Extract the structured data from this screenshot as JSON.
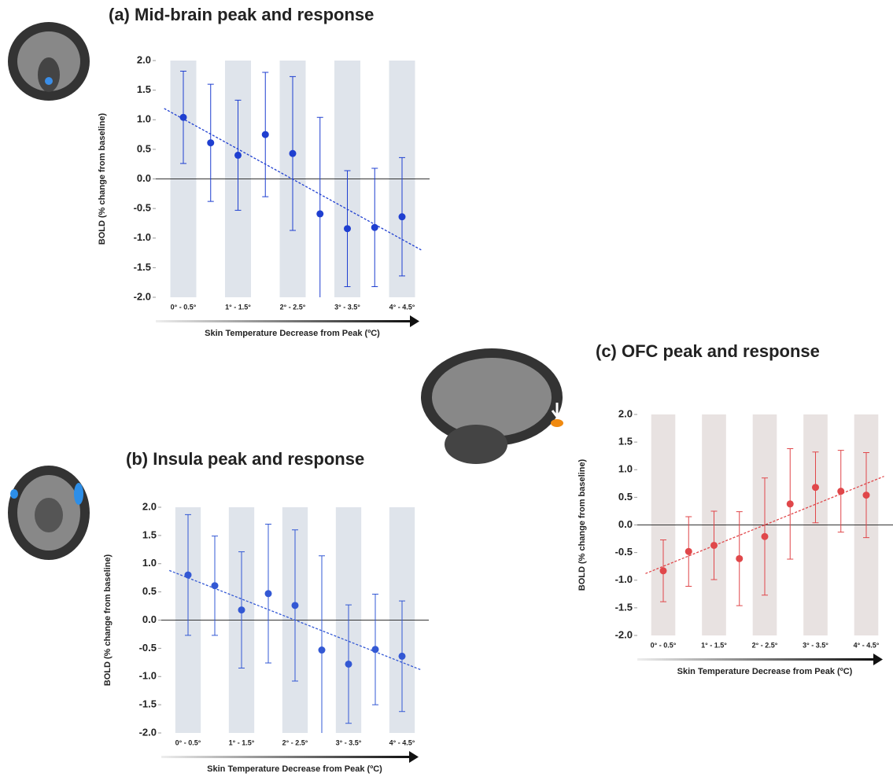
{
  "chart_data": [
    {
      "type": "scatter",
      "title": "(a) Mid-brain peak and response",
      "xlabel": "Skin Temperature Decrease from Peak (ºC)",
      "ylabel": "BOLD (% change from baseline)",
      "categories": [
        "0° - 0.5°",
        null,
        "1° - 1.5°",
        null,
        "2° - 2.5°",
        null,
        "3° - 3.5°",
        null,
        "4° - 4.5°"
      ],
      "values": [
        1.04,
        0.61,
        0.4,
        0.75,
        0.43,
        -0.59,
        -0.84,
        -0.82,
        -0.64
      ],
      "errors": [
        0.78,
        0.99,
        0.93,
        1.05,
        1.3,
        1.63,
        0.98,
        1.0,
        1.0
      ],
      "trendline": [
        1.19,
        -1.2
      ],
      "color": "#1f3fd0",
      "band_color": "#dfe4eb",
      "ylim": [
        -2,
        2
      ],
      "yticks": [
        {
          "value": 2,
          "label": "2.0"
        },
        1.5,
        {
          "value": 1,
          "label": "1.0"
        },
        0.5,
        {
          "value": 0,
          "label": "0.0"
        },
        -0.5,
        {
          "value": -1,
          "label": "-1.0"
        },
        -1.5,
        {
          "value": -2,
          "label": "-2.0"
        }
      ]
    },
    {
      "type": "scatter",
      "title": "(b) Insula peak and response",
      "xlabel": "Skin Temperature Decrease from Peak (ºC)",
      "ylabel": "BOLD (% change from baseline)",
      "categories": [
        "0° - 0.5°",
        null,
        "1° - 1.5°",
        null,
        "2° - 2.5°",
        null,
        "3° - 3.5°",
        null,
        "4° - 4.5°"
      ],
      "values": [
        0.8,
        0.61,
        0.18,
        0.47,
        0.26,
        -0.53,
        -0.78,
        -0.52,
        -0.64
      ],
      "errors": [
        1.07,
        0.88,
        1.03,
        1.23,
        1.34,
        1.67,
        1.05,
        0.98,
        0.98
      ],
      "trendline": [
        0.88,
        -0.88
      ],
      "color": "#3358d4",
      "band_color": "#dfe4eb",
      "ylim": [
        -2,
        2
      ],
      "yticks": [
        {
          "value": 2,
          "label": "2.0"
        },
        1.5,
        {
          "value": 1,
          "label": "1.0"
        },
        0.5,
        {
          "value": 0,
          "label": "0.0"
        },
        -0.5,
        {
          "value": -1,
          "label": "-1.0"
        },
        -1.5,
        {
          "value": -2,
          "label": "-2.0"
        }
      ]
    },
    {
      "type": "scatter",
      "title": "(c) OFC peak and response",
      "xlabel": "Skin Temperature Decrease from Peak (ºC)",
      "ylabel": "BOLD (% change from baseline)",
      "categories": [
        "0° - 0.5°",
        null,
        "1° - 1.5°",
        null,
        "2° - 2.5°",
        null,
        "3° - 3.5°",
        null,
        "4° - 4.5°"
      ],
      "values": [
        -0.83,
        -0.48,
        -0.37,
        -0.61,
        -0.21,
        0.38,
        0.68,
        0.61,
        0.54
      ],
      "errors": [
        0.56,
        0.63,
        0.62,
        0.85,
        1.06,
        1.0,
        0.64,
        0.74,
        0.77
      ],
      "trendline": [
        -0.88,
        0.88
      ],
      "color": "#e0474a",
      "band_color": "#e8e2e1",
      "ylim": [
        -2,
        2
      ],
      "yticks": [
        {
          "value": 2,
          "label": "2.0"
        },
        1.5,
        {
          "value": 1,
          "label": "1.0"
        },
        0.5,
        {
          "value": 0,
          "label": "0.0"
        },
        -0.5,
        {
          "value": -1,
          "label": "-1.0"
        },
        -1.5,
        {
          "value": -2,
          "label": "-2.0"
        }
      ]
    }
  ]
}
